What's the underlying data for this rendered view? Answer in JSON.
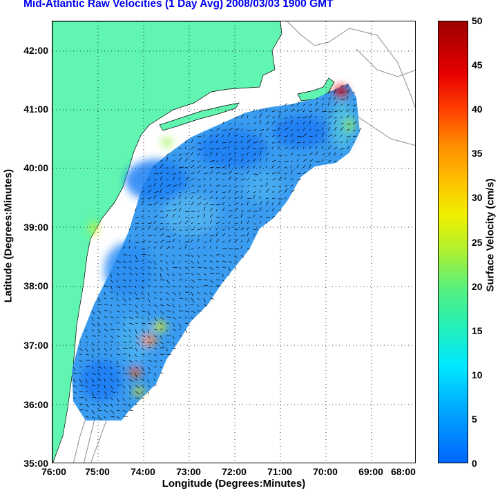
{
  "title": "Mid-Atlantic Raw Velocities (1 Day Avg) 2008/03/03 1900 GMT",
  "xlabel": "Longitude (Degrees:Minutes)",
  "ylabel": "Latitude (Degrees:Minutes)",
  "colorbar_label": "Surface Velocity (cm/s)",
  "x_ticks": [
    "76:00",
    "75:00",
    "74:00",
    "73:00",
    "72:00",
    "71:00",
    "70:00",
    "69:00",
    "68:00"
  ],
  "y_ticks": [
    "35:00",
    "36:00",
    "37:00",
    "38:00",
    "39:00",
    "40:00",
    "41:00",
    "42:00"
  ],
  "colorbar_ticks": [
    "0",
    "5",
    "10",
    "15",
    "20",
    "25",
    "30",
    "35",
    "40",
    "45",
    "50"
  ],
  "map": {
    "lon_range": [
      -76,
      -68
    ],
    "lat_range": [
      35,
      42.5
    ],
    "velocity_range_cm_s": [
      0,
      50
    ],
    "grid": "dotted",
    "colors": {
      "land": "#60f5b0",
      "field_base": "#3a9cf0",
      "coast": "#000000",
      "bathymetry": "#888888"
    }
  }
}
